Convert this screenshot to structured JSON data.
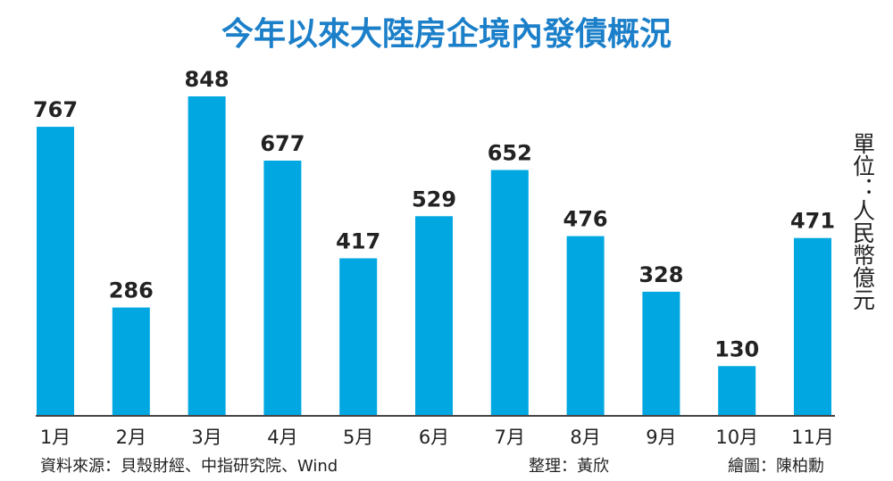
{
  "chart_data": {
    "type": "bar",
    "title": "今年以來大陸房企境內發債概況",
    "unit_label": "單位：人民幣億元",
    "categories": [
      "1月",
      "2月",
      "3月",
      "4月",
      "5月",
      "6月",
      "7月",
      "8月",
      "9月",
      "10月",
      "11月"
    ],
    "values": [
      767,
      286,
      848,
      677,
      417,
      529,
      652,
      476,
      328,
      130,
      471
    ],
    "color": "#00a7e1",
    "source": "資料來源：貝殼財經、中指研究院、Wind",
    "compiled_by": "整理：黃欣",
    "drawn_by": "繪圖：陳柏勳"
  }
}
